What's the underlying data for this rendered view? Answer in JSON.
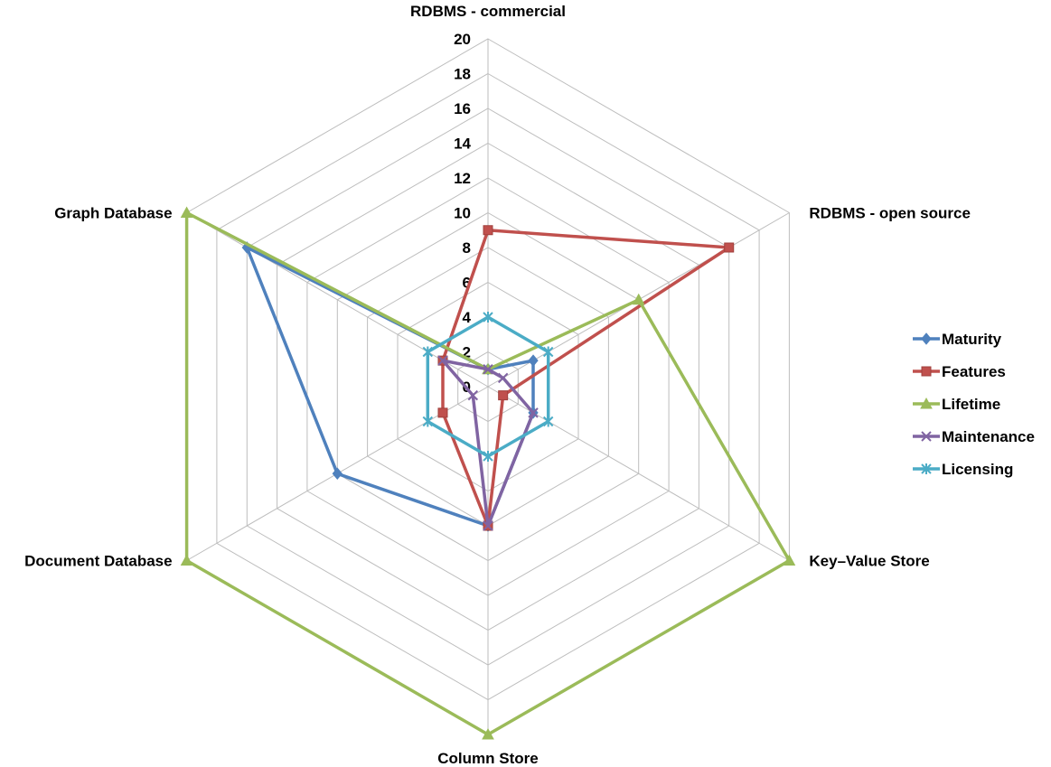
{
  "chart_data": {
    "type": "radar",
    "title": "",
    "categories": [
      "RDBMS - commercial",
      "RDBMS - open source",
      "Key–Value Store",
      "Column Store",
      "Document Database",
      "Graph Database"
    ],
    "r_min": 0,
    "r_max": 20,
    "r_step": 2,
    "tick_labels": [
      "0",
      "2",
      "4",
      "6",
      "8",
      "10",
      "12",
      "14",
      "16",
      "18",
      "20"
    ],
    "grid": true,
    "legend_position": "right",
    "series": [
      {
        "name": "Maturity",
        "color": "#4f81bd",
        "marker": "diamond",
        "values": [
          1,
          3,
          3,
          8,
          10,
          16
        ]
      },
      {
        "name": "Features",
        "color": "#c0504d",
        "marker": "square",
        "values": [
          9,
          16,
          1,
          8,
          3,
          3
        ]
      },
      {
        "name": "Lifetime",
        "color": "#9bbb59",
        "marker": "triangle",
        "values": [
          1,
          10,
          20,
          20,
          20,
          20
        ]
      },
      {
        "name": "Maintenance",
        "color": "#8064a2",
        "marker": "x",
        "values": [
          1,
          1,
          3,
          8,
          1,
          3
        ]
      },
      {
        "name": "Licensing",
        "color": "#4bacc6",
        "marker": "star",
        "values": [
          4,
          4,
          4,
          4,
          4,
          4
        ]
      }
    ]
  }
}
